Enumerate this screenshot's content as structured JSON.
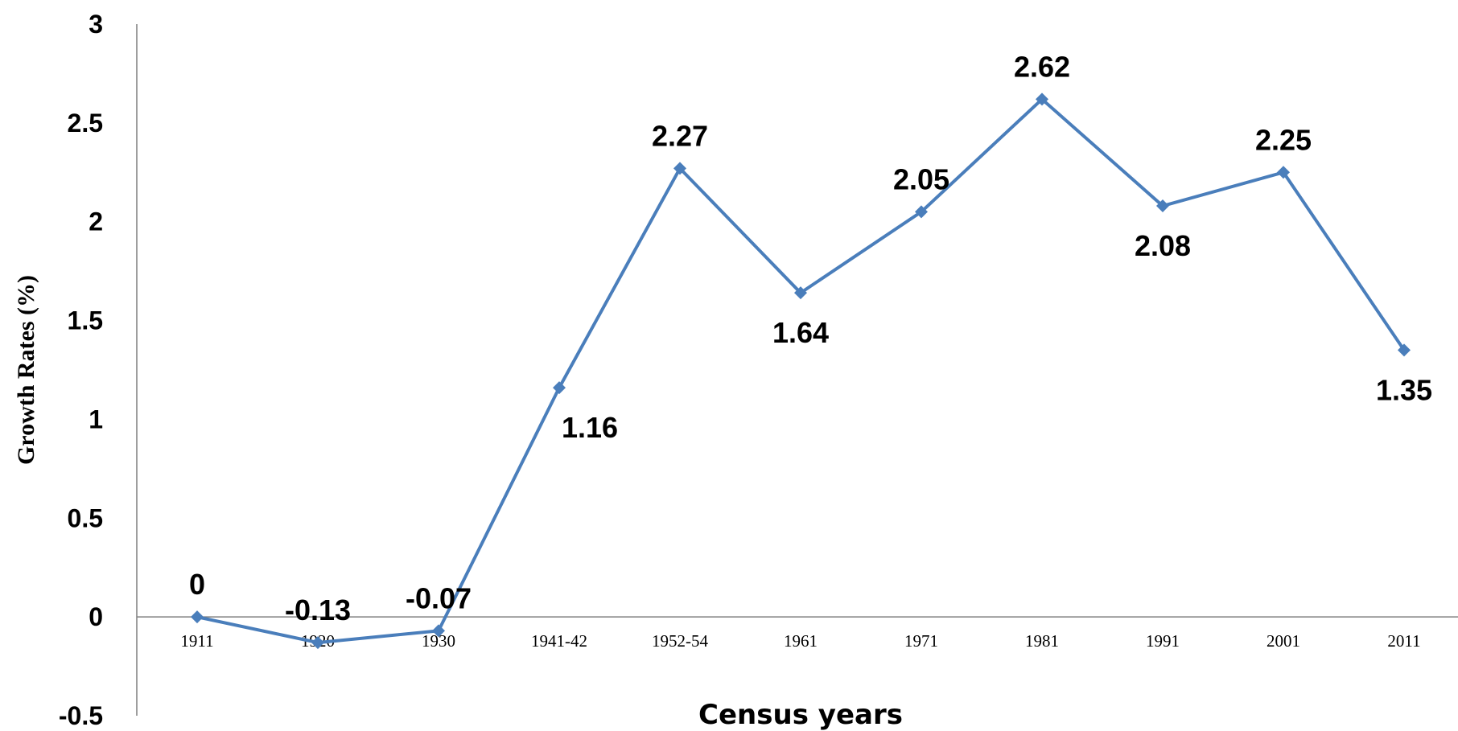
{
  "chart_data": {
    "type": "line",
    "title": "",
    "xlabel": "Census years",
    "ylabel": "Growth Rates  (%)",
    "categories": [
      "1911",
      "1920",
      "1930",
      "1941-42",
      "1952-54",
      "1961",
      "1971",
      "1981",
      "1991",
      "2001",
      "2011"
    ],
    "series": [
      {
        "values": [
          0,
          -0.13,
          -0.07,
          1.16,
          2.27,
          1.64,
          2.05,
          2.62,
          2.08,
          2.25,
          1.35
        ],
        "data_labels": [
          "0",
          "-0.13",
          "-0.07",
          "1.16",
          "2.27",
          "1.64",
          "2.05",
          "2.62",
          "2.08",
          "2.25",
          "1.35"
        ],
        "color": "#4a7ebb",
        "marker": "diamond"
      }
    ],
    "y_ticks": [
      "3",
      "2.5",
      "2",
      "1.5",
      "1",
      "0.5",
      "0",
      "-0.5"
    ],
    "ylim": [
      -0.5,
      3
    ],
    "grid": false,
    "legend": "none",
    "axis_color": "#7f7f7f"
  }
}
